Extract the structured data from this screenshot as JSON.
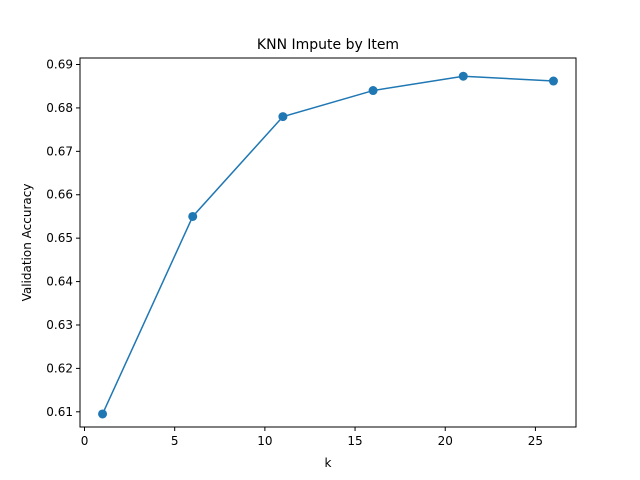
{
  "chart_data": {
    "type": "line",
    "title": "KNN Impute by Item",
    "xlabel": "k",
    "ylabel": "Validation Accuracy",
    "xlim": [
      -0.25,
      27.25
    ],
    "ylim": [
      0.6065,
      0.6915
    ],
    "xticks": [
      0,
      5,
      10,
      15,
      20,
      25
    ],
    "xtick_labels": [
      "0",
      "5",
      "10",
      "15",
      "20",
      "25"
    ],
    "yticks": [
      0.61,
      0.62,
      0.63,
      0.64,
      0.65,
      0.66,
      0.67,
      0.68,
      0.69
    ],
    "ytick_labels": [
      "0.61",
      "0.62",
      "0.63",
      "0.64",
      "0.65",
      "0.66",
      "0.67",
      "0.68",
      "0.69"
    ],
    "grid": false,
    "series": [
      {
        "x": [
          1,
          6,
          11,
          16,
          21,
          26
        ],
        "y": [
          0.6095,
          0.655,
          0.678,
          0.684,
          0.6873,
          0.6862
        ],
        "color": "#1f77b4",
        "marker": "circle"
      }
    ]
  }
}
